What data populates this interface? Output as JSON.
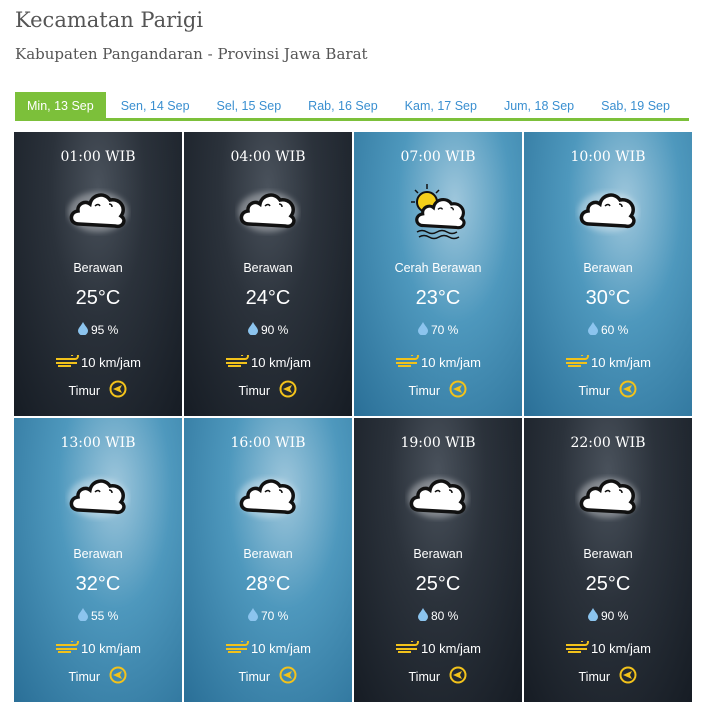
{
  "header": {
    "title": "Kecamatan Parigi",
    "subtitle": "Kabupaten Pangandaran - Provinsi Jawa Barat"
  },
  "tabs": [
    {
      "label": "Min, 13 Sep",
      "active": true
    },
    {
      "label": "Sen, 14 Sep"
    },
    {
      "label": "Sel, 15 Sep"
    },
    {
      "label": "Rab, 16 Sep"
    },
    {
      "label": "Kam, 17 Sep"
    },
    {
      "label": "Jum, 18 Sep"
    },
    {
      "label": "Sab, 19 Sep"
    }
  ],
  "colors": {
    "accent": "#7cc03a",
    "tab_link": "#3a8fd0",
    "wind_icon": "#f2c21b",
    "humidity_icon": "#8cc4ee"
  },
  "forecast": [
    {
      "time": "01:00 WIB",
      "condition": "Berawan",
      "icon": "cloud-icon",
      "theme": "night",
      "temp": "25°C",
      "humidity": "95 %",
      "wind": "10 km/jam",
      "direction": "Timur"
    },
    {
      "time": "04:00 WIB",
      "condition": "Berawan",
      "icon": "cloud-icon",
      "theme": "night",
      "temp": "24°C",
      "humidity": "90 %",
      "wind": "10 km/jam",
      "direction": "Timur"
    },
    {
      "time": "07:00 WIB",
      "condition": "Cerah Berawan",
      "icon": "partly-cloudy-icon",
      "theme": "day",
      "temp": "23°C",
      "humidity": "70 %",
      "wind": "10 km/jam",
      "direction": "Timur"
    },
    {
      "time": "10:00 WIB",
      "condition": "Berawan",
      "icon": "cloud-icon",
      "theme": "day",
      "temp": "30°C",
      "humidity": "60 %",
      "wind": "10 km/jam",
      "direction": "Timur"
    },
    {
      "time": "13:00 WIB",
      "condition": "Berawan",
      "icon": "cloud-icon",
      "theme": "day",
      "temp": "32°C",
      "humidity": "55 %",
      "wind": "10 km/jam",
      "direction": "Timur"
    },
    {
      "time": "16:00 WIB",
      "condition": "Berawan",
      "icon": "cloud-icon",
      "theme": "day",
      "temp": "28°C",
      "humidity": "70 %",
      "wind": "10 km/jam",
      "direction": "Timur"
    },
    {
      "time": "19:00 WIB",
      "condition": "Berawan",
      "icon": "cloud-icon",
      "theme": "night",
      "temp": "25°C",
      "humidity": "80 %",
      "wind": "10 km/jam",
      "direction": "Timur"
    },
    {
      "time": "22:00 WIB",
      "condition": "Berawan",
      "icon": "cloud-icon",
      "theme": "night",
      "temp": "25°C",
      "humidity": "90 %",
      "wind": "10 km/jam",
      "direction": "Timur"
    }
  ]
}
